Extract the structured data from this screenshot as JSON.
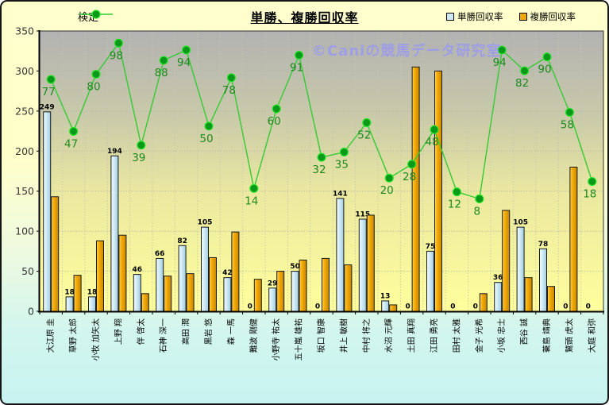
{
  "header": {
    "title": "単勝、複勝回収率",
    "line_legend_label": "検定",
    "bar_legend_1": "単勝回収率",
    "bar_legend_2": "複勝回収率"
  },
  "watermark": "©Caniの競馬データ研究室",
  "colors": {
    "win_bar": "#cfe9f4",
    "place_bar": "#f2a705",
    "line": "#33cc33",
    "marker": "#089a18",
    "green_label": "#1d8a1d"
  },
  "chart_data": {
    "type": "bar",
    "title": "単勝、複勝回収率",
    "categories": [
      "大江原 圭",
      "草野 太郎",
      "小牧 加矢太",
      "上野 翔",
      "伴 啓太",
      "石神 深一",
      "高田 潤",
      "黒岩 悠",
      "森 一馬",
      "難波 剛健",
      "小野寺 祐太",
      "五十嵐 雄祐",
      "坂口 智康",
      "井上 敏樹",
      "中村 将之",
      "水沼 元輝",
      "土田 真翔",
      "江田 勇亮",
      "田村 太雅",
      "金子 光希",
      "小坂 忠士",
      "西谷 誠",
      "蓑島 靖典",
      "鷲頭 虎太",
      "大庭 和弥"
    ],
    "series": [
      {
        "name": "単勝回収率",
        "type": "bar",
        "color": "#cfe9f4",
        "axis": "primary",
        "data_labels": true,
        "values": [
          249,
          18,
          18,
          194,
          46,
          66,
          82,
          105,
          42,
          0,
          29,
          50,
          0,
          141,
          115,
          13,
          0,
          75,
          0,
          0,
          36,
          105,
          78,
          0,
          0
        ]
      },
      {
        "name": "複勝回収率",
        "type": "bar",
        "color": "#f2a705",
        "axis": "primary",
        "data_labels": false,
        "values": [
          143,
          45,
          88,
          95,
          22,
          44,
          47,
          67,
          99,
          40,
          50,
          64,
          66,
          58,
          120,
          8,
          305,
          300,
          0,
          22,
          126,
          42,
          31,
          180,
          0
        ]
      },
      {
        "name": "検定",
        "type": "line",
        "color": "#33cc33",
        "axis": "secondary",
        "data_labels": true,
        "values": [
          77,
          47,
          80,
          98,
          39,
          88,
          94,
          50,
          78,
          14,
          60,
          91,
          32,
          35,
          52,
          20,
          28,
          48,
          12,
          8,
          94,
          82,
          90,
          58,
          18
        ]
      }
    ],
    "primary_axis": {
      "min": 0,
      "max": 350,
      "tick_step": 50,
      "ticks": [
        0,
        50,
        100,
        150,
        200,
        250,
        300,
        350
      ]
    },
    "secondary_axis": {
      "min": -57,
      "max": 105,
      "visible": false
    },
    "legend_position": "top",
    "grid": true,
    "xlabel": "",
    "ylabel": ""
  }
}
